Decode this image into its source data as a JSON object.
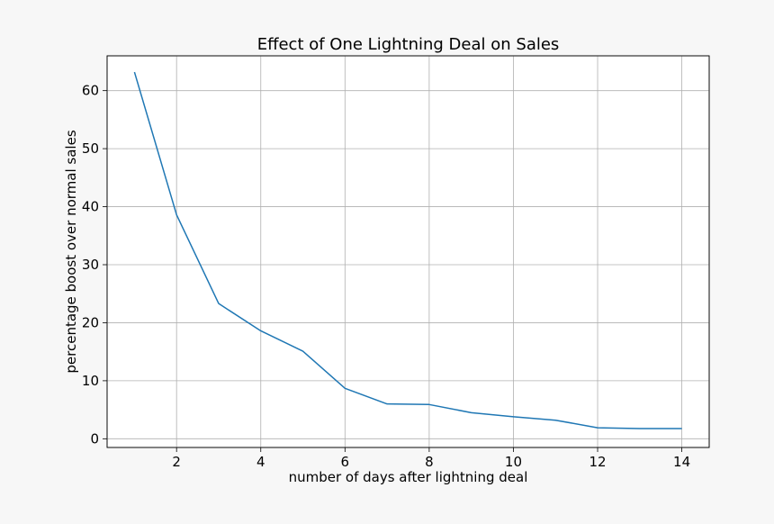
{
  "chart_data": {
    "type": "line",
    "title": "Effect of One Lightning Deal on Sales",
    "xlabel": "number of days after lightning deal",
    "ylabel": "percentage boost over normal sales",
    "xlim": [
      0.35,
      14.65
    ],
    "ylim": [
      -1.5,
      66
    ],
    "xticks": [
      2,
      4,
      6,
      8,
      10,
      12,
      14
    ],
    "yticks": [
      0,
      10,
      20,
      30,
      40,
      50,
      60
    ],
    "grid": true,
    "series": [
      {
        "color": "#1f77b4",
        "x": [
          1,
          2,
          3,
          4,
          5,
          6,
          7,
          8,
          9,
          10,
          11,
          12,
          13,
          14
        ],
        "y": [
          63.2,
          38.6,
          23.3,
          18.6,
          15.1,
          8.7,
          6.0,
          5.9,
          4.5,
          3.8,
          3.2,
          1.9,
          1.75,
          1.75
        ]
      }
    ]
  }
}
